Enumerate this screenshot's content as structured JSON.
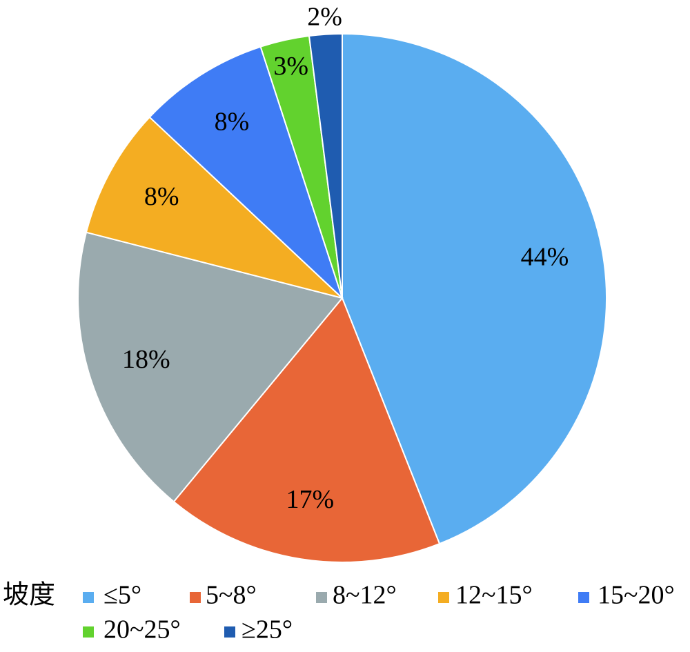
{
  "chart_data": {
    "type": "pie",
    "legend_title": "坡度",
    "categories": [
      "≤5°",
      "5~8°",
      "8~12°",
      "12~15°",
      "15~20°",
      "20~25°",
      "≥25°"
    ],
    "values": [
      44,
      17,
      18,
      8,
      8,
      3,
      2
    ],
    "value_labels": [
      "44%",
      "17%",
      "18%",
      "8%",
      "8%",
      "3%",
      "2%"
    ],
    "colors": [
      "#5aadf0",
      "#e86637",
      "#9aaaae",
      "#f4ad22",
      "#3f7cf5",
      "#62d22e",
      "#1f5cb0"
    ]
  }
}
